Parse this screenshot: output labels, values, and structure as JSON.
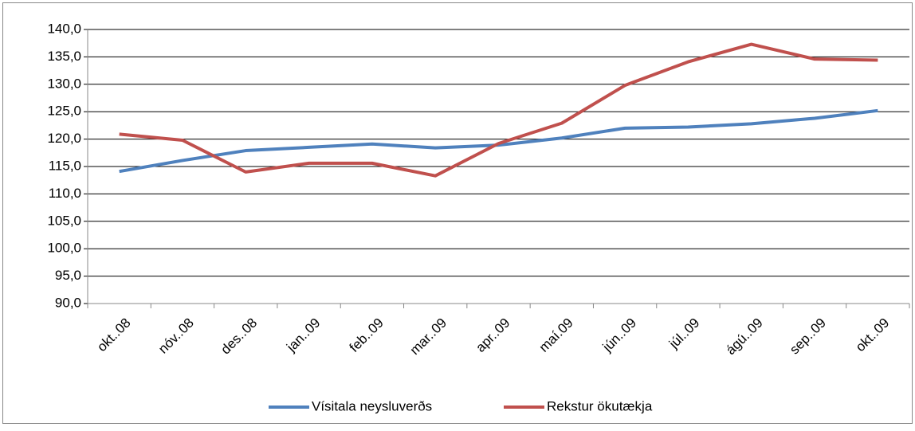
{
  "chart_data": {
    "type": "line",
    "categories": [
      "okt..08",
      "nóv..08",
      "des..08",
      "jan..09",
      "feb..09",
      "mar..09",
      "apr..09",
      "maí.09",
      "jún..09",
      "júl..09",
      "ágú..09",
      "sep..09",
      "okt..09"
    ],
    "series": [
      {
        "name": "Vísitala neysluverðs",
        "color": "#4f81bd",
        "values": [
          114.1,
          116.1,
          117.9,
          118.5,
          119.1,
          118.4,
          118.9,
          120.2,
          122.0,
          122.2,
          122.8,
          123.8,
          125.2
        ]
      },
      {
        "name": "Rekstur ökutækja",
        "color": "#c0504d",
        "values": [
          120.9,
          119.8,
          114.0,
          115.6,
          115.6,
          113.3,
          119.2,
          122.9,
          129.8,
          134.1,
          137.3,
          134.6,
          134.4
        ]
      }
    ],
    "ylim": [
      90,
      140
    ],
    "yticks": [
      {
        "value": 90,
        "label": "90,0"
      },
      {
        "value": 95,
        "label": "95,0"
      },
      {
        "value": 100,
        "label": "100,0"
      },
      {
        "value": 105,
        "label": "105,0"
      },
      {
        "value": 110,
        "label": "110,0"
      },
      {
        "value": 115,
        "label": "115,0"
      },
      {
        "value": 120,
        "label": "120,0"
      },
      {
        "value": 125,
        "label": "125,0"
      },
      {
        "value": 130,
        "label": "130,0"
      },
      {
        "value": 135,
        "label": "135,0"
      },
      {
        "value": 140,
        "label": "140,0"
      }
    ],
    "grid": true,
    "legend": "bottom"
  }
}
